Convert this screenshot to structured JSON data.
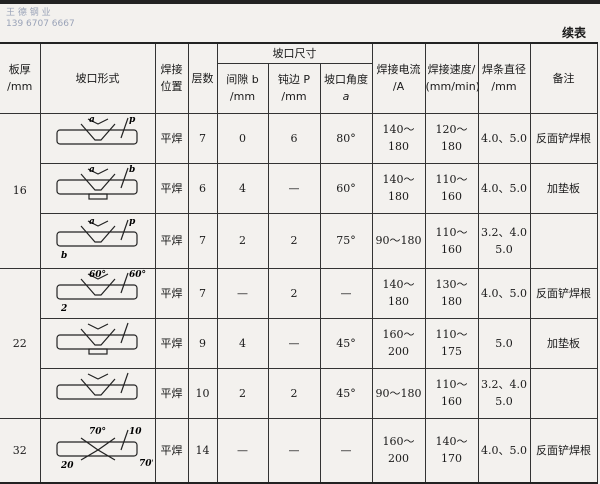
{
  "watermark": {
    "line1": "王 德 钢 业",
    "line2": "139 6707 6667"
  },
  "continued_label": "续表",
  "headers": {
    "thickness": "板厚",
    "thickness_unit": "/mm",
    "groove_form": "坡口形式",
    "position": "焊接位置",
    "layers": "层数",
    "groove_size": "坡口尺寸",
    "gap": "间隙 b",
    "gap_unit": "/mm",
    "blunt": "钝边 P",
    "blunt_unit": "/mm",
    "angle": "坡口角度",
    "angle_sym": "a",
    "current": "焊接电流",
    "current_unit": "/A",
    "speed": "焊接速度/",
    "speed_unit": "(mm/min)",
    "rod": "焊条直径",
    "rod_unit": "/mm",
    "remark": "备注"
  },
  "groups": [
    {
      "thickness": "16",
      "rows": [
        {
          "position": "平焊",
          "layers": "7",
          "gap": "0",
          "blunt": "6",
          "angle": "80°",
          "current": "140～180",
          "speed": "120～180",
          "rod": "4.0、5.0",
          "remark": "反面铲焊根",
          "diagram": {
            "labels": [
              "a",
              "p"
            ]
          }
        },
        {
          "position": "平焊",
          "layers": "6",
          "gap": "4",
          "blunt": "—",
          "angle": "60°",
          "current": "140～180",
          "speed": "110～160",
          "rod": "4.0、5.0",
          "remark": "加垫板",
          "diagram": {
            "labels": [
              "a",
              "b"
            ]
          }
        },
        {
          "position": "平焊",
          "layers": "7",
          "gap": "2",
          "blunt": "2",
          "angle": "75°",
          "current": "90～180",
          "speed": "110～160",
          "rod": "3.2、4.0 5.0",
          "remark": "",
          "diagram": {
            "labels": [
              "a",
              "p",
              "b"
            ]
          }
        }
      ]
    },
    {
      "thickness": "22",
      "rows": [
        {
          "position": "平焊",
          "layers": "7",
          "gap": "—",
          "blunt": "2",
          "angle": "—",
          "current": "140～180",
          "speed": "130～180",
          "rod": "4.0、5.0",
          "remark": "反面铲焊根",
          "diagram": {
            "labels": [
              "60°",
              "60°",
              "2"
            ]
          }
        },
        {
          "position": "平焊",
          "layers": "9",
          "gap": "4",
          "blunt": "—",
          "angle": "45°",
          "current": "160～200",
          "speed": "110～175",
          "rod": "5.0",
          "remark": "加垫板",
          "diagram": {
            "labels": []
          }
        },
        {
          "position": "平焊",
          "layers": "10",
          "gap": "2",
          "blunt": "2",
          "angle": "45°",
          "current": "90～180",
          "speed": "110～160",
          "rod": "3.2、4.0 5.0",
          "remark": "",
          "diagram": {
            "labels": []
          }
        }
      ]
    },
    {
      "thickness": "32",
      "rows": [
        {
          "position": "平焊",
          "layers": "14",
          "gap": "—",
          "blunt": "—",
          "angle": "—",
          "current": "160～200",
          "speed": "140～170",
          "rod": "4.0、5.0",
          "remark": "反面铲焊根",
          "diagram": {
            "labels": [
              "70°",
              "10",
              "20",
              "70°"
            ]
          }
        }
      ]
    }
  ]
}
